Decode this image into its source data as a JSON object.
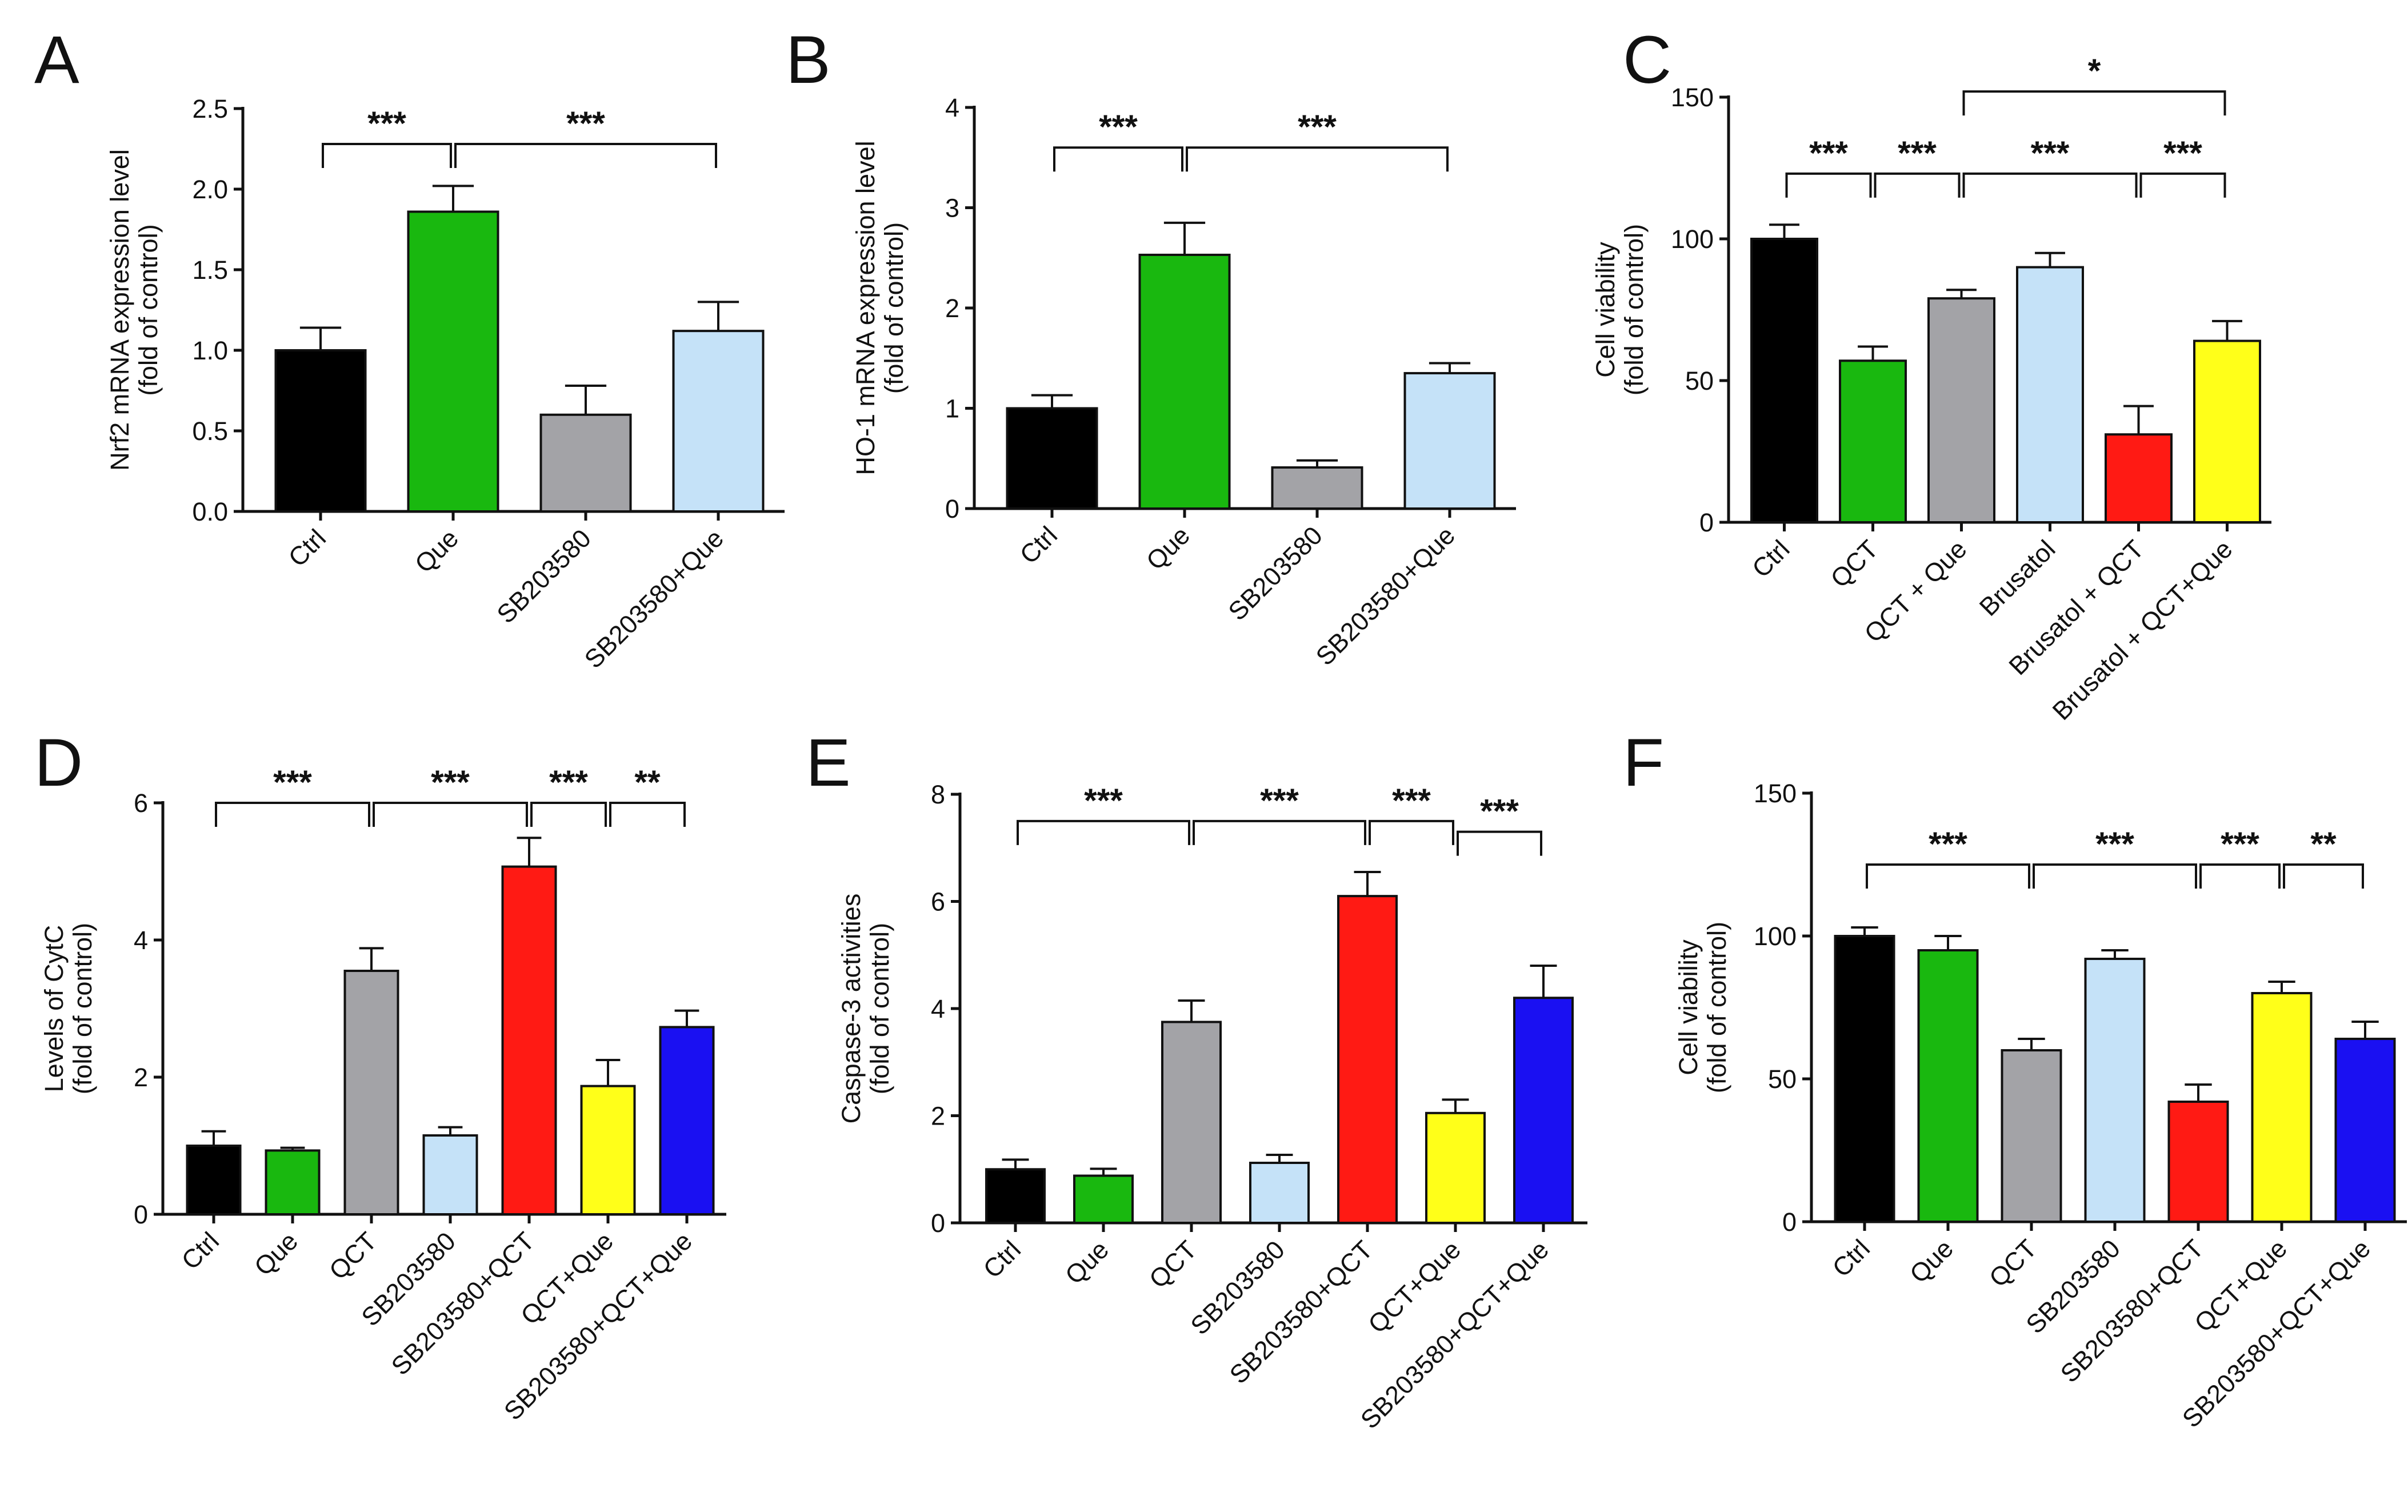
{
  "colors": {
    "black": "#000000",
    "green": "#19B80F",
    "gray": "#A3A3A7",
    "lightblue": "#C5E2F8",
    "red": "#FF1A14",
    "yellow": "#FFFF19",
    "blue": "#1A10F2"
  },
  "chart_data": [
    {
      "id": "A",
      "type": "bar",
      "panel_label": "A",
      "ylabel": [
        "Nrf2 mRNA expression level",
        "(fold of control)"
      ],
      "ylim": [
        0,
        2.5
      ],
      "yticks": [
        "0.0",
        "0.5",
        "1.0",
        "1.5",
        "2.0",
        "2.5"
      ],
      "categories": [
        "Ctrl",
        "Que",
        "SB203580",
        "SB203580+Que"
      ],
      "values": [
        1.0,
        1.86,
        0.6,
        1.12
      ],
      "errors": [
        0.14,
        0.16,
        0.18,
        0.18
      ],
      "bar_colors": [
        "black",
        "green",
        "gray",
        "lightblue"
      ],
      "significance": [
        {
          "from": 0,
          "to": 1,
          "label": "***",
          "level": 2.28
        },
        {
          "from": 1,
          "to": 3,
          "label": "***",
          "level": 2.28
        }
      ]
    },
    {
      "id": "B",
      "type": "bar",
      "panel_label": "B",
      "ylabel": [
        "HO-1 mRNA expression level",
        "(fold of control)"
      ],
      "ylim": [
        0,
        4
      ],
      "yticks": [
        "0",
        "1",
        "2",
        "3",
        "4"
      ],
      "categories": [
        "Ctrl",
        "Que",
        "SB203580",
        "SB203580+Que"
      ],
      "values": [
        1.0,
        2.53,
        0.41,
        1.35
      ],
      "errors": [
        0.13,
        0.32,
        0.07,
        0.1
      ],
      "bar_colors": [
        "black",
        "green",
        "gray",
        "lightblue"
      ],
      "significance": [
        {
          "from": 0,
          "to": 1,
          "label": "***",
          "level": 3.6
        },
        {
          "from": 1,
          "to": 3,
          "label": "***",
          "level": 3.6
        }
      ]
    },
    {
      "id": "C",
      "type": "bar",
      "panel_label": "C",
      "ylabel": [
        "Cell viability",
        "(fold of control)"
      ],
      "ylim": [
        0,
        150
      ],
      "yticks": [
        "0",
        "50",
        "100",
        "150"
      ],
      "categories": [
        "Ctrl",
        "QCT",
        "QCT + Que",
        "Brusatol",
        "Brusatol + QCT",
        "Brusatol + QCT+Que"
      ],
      "values": [
        100,
        57,
        79,
        90,
        31,
        64
      ],
      "errors": [
        5,
        5,
        3,
        5,
        10,
        7
      ],
      "bar_colors": [
        "black",
        "green",
        "gray",
        "lightblue",
        "red",
        "yellow"
      ],
      "significance": [
        {
          "from": 0,
          "to": 1,
          "label": "***",
          "level": 123
        },
        {
          "from": 1,
          "to": 2,
          "label": "***",
          "level": 123
        },
        {
          "from": 2,
          "to": 4,
          "label": "***",
          "level": 123
        },
        {
          "from": 4,
          "to": 5,
          "label": "***",
          "level": 123
        },
        {
          "from": 2,
          "to": 5,
          "label": "*",
          "level": 152
        }
      ]
    },
    {
      "id": "D",
      "type": "bar",
      "panel_label": "D",
      "ylabel": [
        "Levels of CytC",
        "(fold of control)"
      ],
      "ylim": [
        0,
        6
      ],
      "yticks": [
        "0",
        "2",
        "4",
        "6"
      ],
      "categories": [
        "Ctrl",
        "Que",
        "QCT",
        "SB203580",
        "SB203580+QCT",
        "QCT+Que",
        "SB203580+QCT+Que"
      ],
      "values": [
        1.0,
        0.93,
        3.55,
        1.15,
        5.07,
        1.87,
        2.73
      ],
      "errors": [
        0.21,
        0.04,
        0.33,
        0.12,
        0.42,
        0.38,
        0.24
      ],
      "bar_colors": [
        "black",
        "green",
        "gray",
        "lightblue",
        "red",
        "yellow",
        "blue"
      ],
      "significance": [
        {
          "from": 0,
          "to": 2,
          "label": "***",
          "level": 6.0
        },
        {
          "from": 2,
          "to": 4,
          "label": "***",
          "level": 6.0
        },
        {
          "from": 4,
          "to": 5,
          "label": "***",
          "level": 6.0
        },
        {
          "from": 5,
          "to": 6,
          "label": "**",
          "level": 6.0
        }
      ]
    },
    {
      "id": "E",
      "type": "bar",
      "panel_label": "E",
      "ylabel": [
        "Caspase-3 activities",
        "(fold of control)"
      ],
      "ylim": [
        0,
        8
      ],
      "yticks": [
        "0",
        "2",
        "4",
        "6",
        "8"
      ],
      "categories": [
        "Ctrl",
        "Que",
        "QCT",
        "SB203580",
        "SB203580+QCT",
        "QCT+Que",
        "SB203580+QCT+Que"
      ],
      "values": [
        1.0,
        0.88,
        3.75,
        1.12,
        6.1,
        2.05,
        4.2
      ],
      "errors": [
        0.18,
        0.13,
        0.4,
        0.15,
        0.45,
        0.25,
        0.6
      ],
      "bar_colors": [
        "black",
        "green",
        "gray",
        "lightblue",
        "red",
        "yellow",
        "blue"
      ],
      "significance": [
        {
          "from": 0,
          "to": 2,
          "label": "***",
          "level": 7.5
        },
        {
          "from": 2,
          "to": 4,
          "label": "***",
          "level": 7.5
        },
        {
          "from": 4,
          "to": 5,
          "label": "***",
          "level": 7.5
        },
        {
          "from": 5,
          "to": 6,
          "label": "***",
          "level": 7.3
        }
      ]
    },
    {
      "id": "F",
      "type": "bar",
      "panel_label": "F",
      "ylabel": [
        "Cell viability",
        "(fold of control)"
      ],
      "ylim": [
        0,
        150
      ],
      "yticks": [
        "0",
        "50",
        "100",
        "150"
      ],
      "categories": [
        "Ctrl",
        "Que",
        "QCT",
        "SB203580",
        "SB203580+QCT",
        "QCT+Que",
        "SB203580+QCT+Que"
      ],
      "values": [
        100,
        95,
        60,
        92,
        42,
        80,
        64
      ],
      "errors": [
        3,
        5,
        4,
        3,
        6,
        4,
        6
      ],
      "bar_colors": [
        "black",
        "green",
        "gray",
        "lightblue",
        "red",
        "yellow",
        "blue"
      ],
      "significance": [
        {
          "from": 0,
          "to": 2,
          "label": "***",
          "level": 125
        },
        {
          "from": 2,
          "to": 4,
          "label": "***",
          "level": 125
        },
        {
          "from": 4,
          "to": 5,
          "label": "***",
          "level": 125
        },
        {
          "from": 5,
          "to": 6,
          "label": "**",
          "level": 125
        }
      ]
    }
  ]
}
